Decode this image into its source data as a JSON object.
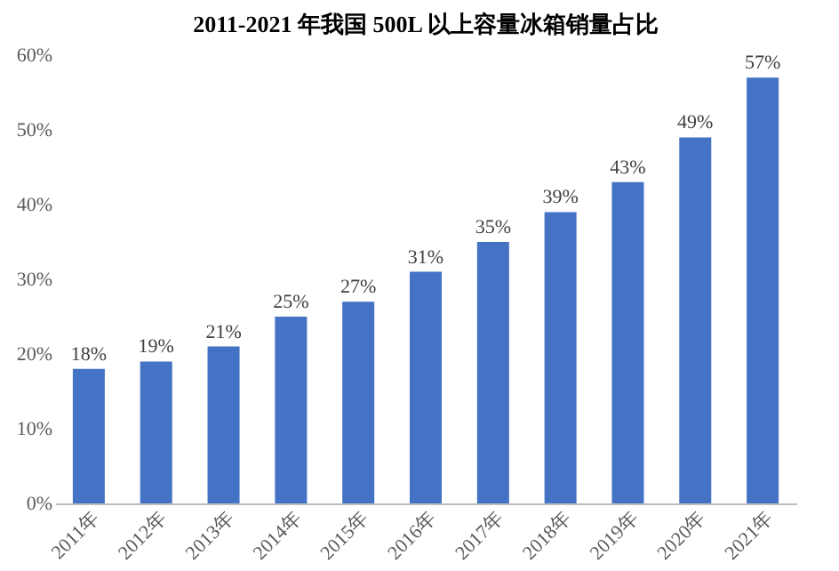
{
  "chart_data": {
    "type": "bar",
    "title": "2011-2021 年我国 500L 以上容量冰箱销量占比",
    "categories": [
      "2011年",
      "2012年",
      "2013年",
      "2014年",
      "2015年",
      "2016年",
      "2017年",
      "2018年",
      "2019年",
      "2020年",
      "2021年"
    ],
    "values": [
      18,
      19,
      21,
      25,
      27,
      31,
      35,
      39,
      43,
      49,
      57
    ],
    "value_labels": [
      "18%",
      "19%",
      "21%",
      "25%",
      "27%",
      "31%",
      "35%",
      "39%",
      "43%",
      "49%",
      "57%"
    ],
    "color": "#4472c4",
    "ylim": [
      0,
      60
    ],
    "yticks": [
      {
        "value": 0,
        "label": "0%"
      },
      {
        "value": 10,
        "label": "10%"
      },
      {
        "value": 20,
        "label": "20%"
      },
      {
        "value": 30,
        "label": "30%"
      },
      {
        "value": 40,
        "label": "40%"
      },
      {
        "value": 50,
        "label": "50%"
      },
      {
        "value": 60,
        "label": "60%"
      }
    ],
    "grid": false
  }
}
